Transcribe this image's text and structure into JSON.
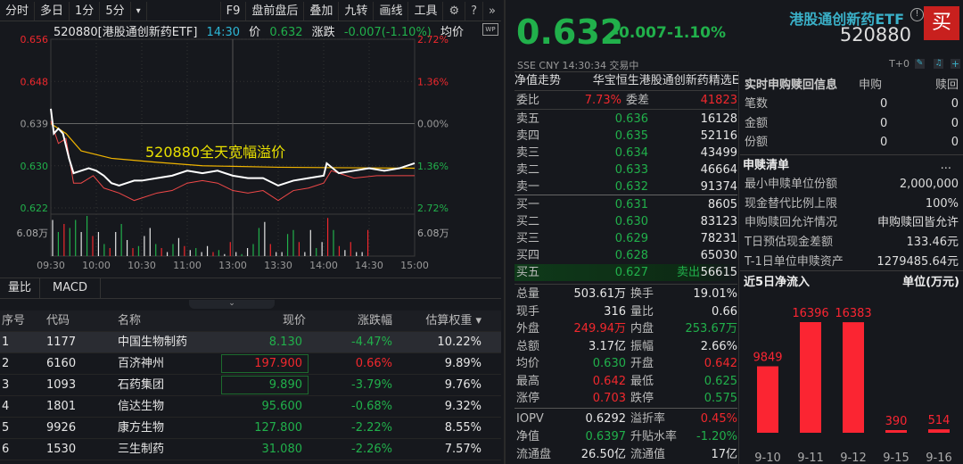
{
  "toolbar": {
    "left": [
      "分时",
      "多日",
      "1分",
      "5分"
    ],
    "more": "▾",
    "right": [
      "F9",
      "盘前盘后",
      "叠加",
      "九转",
      "画线",
      "工具"
    ],
    "icons": [
      "gear-icon",
      "help-icon",
      "chevrons-right-icon"
    ]
  },
  "chart": {
    "info": {
      "name": "520880[港股通创新药ETF]",
      "time": "14:30",
      "price_label": "价",
      "price": "0.632",
      "chg_label": "涨跌",
      "chg": "-0.007(-1.10%)",
      "avg_label": "均价"
    },
    "left_ticks": [
      {
        "v": "0.656",
        "c": "#f0282d"
      },
      {
        "v": "0.648",
        "c": "#f0282d"
      },
      {
        "v": "0.639",
        "c": "#9a9a9a"
      },
      {
        "v": "0.630",
        "c": "#21b04b"
      },
      {
        "v": "0.622",
        "c": "#21b04b"
      }
    ],
    "right_ticks": [
      {
        "v": "2.72%",
        "c": "#f0282d"
      },
      {
        "v": "1.36%",
        "c": "#f0282d"
      },
      {
        "v": "0.00%",
        "c": "#9a9a9a"
      },
      {
        "v": "1.36%",
        "c": "#21b04b"
      },
      {
        "v": "2.72%",
        "c": "#21b04b"
      }
    ],
    "vol_label": "6.08万",
    "x_ticks": [
      "09:30",
      "10:00",
      "10:30",
      "11:00",
      "13:00",
      "13:30",
      "14:00",
      "14:30",
      "15:00"
    ],
    "annotation": "520880全天宽幅溢价",
    "ylim": [
      0.622,
      0.656
    ],
    "price": [
      [
        0,
        0.642
      ],
      [
        2,
        0.637
      ],
      [
        5,
        0.638
      ],
      [
        8,
        0.637
      ],
      [
        12,
        0.632
      ],
      [
        15,
        0.629
      ],
      [
        20,
        0.6295
      ],
      [
        25,
        0.63
      ],
      [
        30,
        0.6295
      ],
      [
        35,
        0.6285
      ],
      [
        40,
        0.627
      ],
      [
        45,
        0.6265
      ],
      [
        50,
        0.627
      ],
      [
        55,
        0.6275
      ],
      [
        60,
        0.6275
      ],
      [
        70,
        0.628
      ],
      [
        80,
        0.6285
      ],
      [
        90,
        0.6295
      ],
      [
        100,
        0.629
      ],
      [
        110,
        0.6295
      ],
      [
        120,
        0.6285
      ],
      [
        130,
        0.628
      ],
      [
        140,
        0.628
      ],
      [
        150,
        0.6265
      ],
      [
        160,
        0.6275
      ],
      [
        170,
        0.628
      ],
      [
        180,
        0.6285
      ],
      [
        182,
        0.631
      ],
      [
        190,
        0.629
      ],
      [
        200,
        0.6295
      ],
      [
        210,
        0.63
      ],
      [
        220,
        0.6295
      ],
      [
        230,
        0.63
      ],
      [
        240,
        0.631
      ]
    ],
    "avg": [
      [
        0,
        0.639
      ],
      [
        10,
        0.637
      ],
      [
        20,
        0.6335
      ],
      [
        40,
        0.632
      ],
      [
        70,
        0.6312
      ],
      [
        100,
        0.6305
      ],
      [
        150,
        0.6302
      ],
      [
        240,
        0.63
      ]
    ],
    "iopv": [
      [
        0,
        0.6395
      ],
      [
        5,
        0.635
      ],
      [
        10,
        0.636
      ],
      [
        15,
        0.627
      ],
      [
        20,
        0.627
      ],
      [
        28,
        0.6285
      ],
      [
        35,
        0.626
      ],
      [
        45,
        0.625
      ],
      [
        55,
        0.6235
      ],
      [
        60,
        0.624
      ],
      [
        70,
        0.625
      ],
      [
        80,
        0.6255
      ],
      [
        90,
        0.627
      ],
      [
        100,
        0.6275
      ],
      [
        110,
        0.627
      ],
      [
        120,
        0.6255
      ],
      [
        130,
        0.625
      ],
      [
        140,
        0.6255
      ],
      [
        150,
        0.6235
      ],
      [
        160,
        0.6255
      ],
      [
        170,
        0.626
      ],
      [
        180,
        0.627
      ],
      [
        185,
        0.6295
      ],
      [
        200,
        0.628
      ],
      [
        215,
        0.6285
      ],
      [
        240,
        0.6285
      ]
    ],
    "volumes": [
      {
        "v": 0.9,
        "c": "w"
      },
      {
        "v": 0.6,
        "c": "g"
      },
      {
        "v": 0.8,
        "c": "r"
      },
      {
        "v": 0.7,
        "c": "g"
      },
      {
        "v": 0.9,
        "c": "g"
      },
      {
        "v": 0.6,
        "c": "w"
      },
      {
        "v": 1,
        "c": "g"
      },
      {
        "v": 0.5,
        "c": "r"
      },
      {
        "v": 0.6,
        "c": "w"
      },
      {
        "v": 0.3,
        "c": "g"
      },
      {
        "v": 0.2,
        "c": "r"
      },
      {
        "v": 0.6,
        "c": "w"
      },
      {
        "v": 0.8,
        "c": "g"
      },
      {
        "v": 0.4,
        "c": "w"
      },
      {
        "v": 0.2,
        "c": "r"
      },
      {
        "v": 0.25,
        "c": "g"
      },
      {
        "v": 0.5,
        "c": "w"
      },
      {
        "v": 0.7,
        "c": "w"
      },
      {
        "v": 0.3,
        "c": "g"
      },
      {
        "v": 0.2,
        "c": "r"
      },
      {
        "v": 0.1,
        "c": "w"
      },
      {
        "v": 0.3,
        "c": "g"
      },
      {
        "v": 0.45,
        "c": "w"
      },
      {
        "v": 0.25,
        "c": "r"
      },
      {
        "v": 0.15,
        "c": "w"
      },
      {
        "v": 0.2,
        "c": "g"
      },
      {
        "v": 0.1,
        "c": "w"
      },
      {
        "v": 0.25,
        "c": "w"
      },
      {
        "v": 0.1,
        "c": "r"
      },
      {
        "v": 0.15,
        "c": "g"
      },
      {
        "v": 0.05,
        "c": "w"
      },
      {
        "v": 0.35,
        "c": "r"
      },
      {
        "v": 0.1,
        "c": "w"
      },
      {
        "v": 0.05,
        "c": "g"
      },
      {
        "v": 0.2,
        "c": "w"
      },
      {
        "v": 0.3,
        "c": "g"
      },
      {
        "v": 0.7,
        "c": "g"
      },
      {
        "v": 0.85,
        "c": "w"
      },
      {
        "v": 0.3,
        "c": "r"
      },
      {
        "v": 0.1,
        "c": "w"
      },
      {
        "v": 0.1,
        "c": "w"
      },
      {
        "v": 0.55,
        "c": "g"
      },
      {
        "v": 0.65,
        "c": "g"
      },
      {
        "v": 0.35,
        "c": "r"
      },
      {
        "v": 0.1,
        "c": "w"
      },
      {
        "v": 0.65,
        "c": "w"
      },
      {
        "v": 0.2,
        "c": "g"
      },
      {
        "v": 0.35,
        "c": "w"
      },
      {
        "v": 0.95,
        "c": "r"
      },
      {
        "v": 0.65,
        "c": "g"
      },
      {
        "v": 0.25,
        "c": "r"
      },
      {
        "v": 0.15,
        "c": "w"
      },
      {
        "v": 0.35,
        "c": "r"
      },
      {
        "v": 0.1,
        "c": "w"
      },
      {
        "v": 0.1,
        "c": "w"
      },
      {
        "v": 0.65,
        "c": "r"
      }
    ]
  },
  "sub_tabs": [
    "量比",
    "MACD"
  ],
  "constituents": {
    "headers": [
      "序号",
      "代码",
      "名称",
      "现价",
      "涨跌幅",
      "估算权重 ▾"
    ],
    "rows": [
      {
        "no": "1",
        "code": "1177",
        "name": "中国生物制药",
        "price": "8.130",
        "chg": "-4.47%",
        "w": "10.22%",
        "dir": "down"
      },
      {
        "no": "2",
        "code": "6160",
        "name": "百济神州",
        "price": "197.900",
        "chg": "0.66%",
        "w": "9.89%",
        "dir": "up"
      },
      {
        "no": "3",
        "code": "1093",
        "name": "石药集团",
        "price": "9.890",
        "chg": "-3.79%",
        "w": "9.76%",
        "dir": "down"
      },
      {
        "no": "4",
        "code": "1801",
        "name": "信达生物",
        "price": "95.600",
        "chg": "-0.68%",
        "w": "9.32%",
        "dir": "down"
      },
      {
        "no": "5",
        "code": "9926",
        "name": "康方生物",
        "price": "127.800",
        "chg": "-2.22%",
        "w": "8.55%",
        "dir": "down"
      },
      {
        "no": "6",
        "code": "1530",
        "name": "三生制药",
        "price": "31.080",
        "chg": "-2.26%",
        "w": "7.57%",
        "dir": "down"
      }
    ]
  },
  "quote": {
    "price": "0.632",
    "chg": "-0.007",
    "pct": "-1.10%",
    "name": "港股通创新药ETF",
    "code": "520880",
    "buy": "买",
    "meta": "SSE  CNY  14:30:34  交易中",
    "t0": "T+0"
  },
  "orderbook": {
    "nav_label": "净值走势",
    "index_name": "华宝恒生港股通创新药精选E",
    "wb_label": "委比",
    "wb": "7.73%",
    "wc_label": "委差",
    "wc": "41823",
    "asks": [
      {
        "l": "卖五",
        "p": "0.636",
        "v": "16128"
      },
      {
        "l": "卖四",
        "p": "0.635",
        "v": "52116"
      },
      {
        "l": "卖三",
        "p": "0.634",
        "v": "43499"
      },
      {
        "l": "卖二",
        "p": "0.633",
        "v": "46664"
      },
      {
        "l": "卖一",
        "p": "0.632",
        "v": "91374"
      }
    ],
    "bids": [
      {
        "l": "买一",
        "p": "0.631",
        "v": "8605"
      },
      {
        "l": "买二",
        "p": "0.630",
        "v": "83123"
      },
      {
        "l": "买三",
        "p": "0.629",
        "v": "78231"
      },
      {
        "l": "买四",
        "p": "0.628",
        "v": "65030"
      },
      {
        "l": "买五",
        "p": "0.627",
        "v": "56615",
        "tag": "卖出"
      }
    ]
  },
  "stats": [
    [
      "总量",
      "503.61万",
      "w",
      "换手",
      "19.01%",
      "w"
    ],
    [
      "现手",
      "316",
      "w",
      "量比",
      "0.66",
      "w"
    ],
    [
      "外盘",
      "249.94万",
      "r",
      "内盘",
      "253.67万",
      "g"
    ],
    [
      "总额",
      "3.17亿",
      "w",
      "振幅",
      "2.66%",
      "w"
    ],
    [
      "均价",
      "0.630",
      "g",
      "开盘",
      "0.642",
      "r"
    ],
    [
      "最高",
      "0.642",
      "r",
      "最低",
      "0.625",
      "g"
    ],
    [
      "涨停",
      "0.703",
      "r",
      "跌停",
      "0.575",
      "g"
    ],
    [
      "IOPV",
      "0.6292",
      "w",
      "溢折率",
      "0.45%",
      "r"
    ],
    [
      "净值",
      "0.6397",
      "g",
      "升贴水率",
      "-1.20%",
      "g"
    ],
    [
      "流通盘",
      "26.50亿",
      "w",
      "流通值",
      "17亿",
      "w"
    ]
  ],
  "creation": {
    "title": "实时申购赎回信息",
    "col1": "申购",
    "col2": "赎回",
    "rows": [
      [
        "笔数",
        "0",
        "0"
      ],
      [
        "金额",
        "0",
        "0"
      ],
      [
        "份额",
        "0",
        "0"
      ]
    ],
    "list_title": "申赎清单",
    "more": "...",
    "list": [
      [
        "最小申赎单位份额",
        "2,000,000"
      ],
      [
        "现金替代比例上限",
        "100%"
      ],
      [
        "申购赎回允许情况",
        "申购赎回皆允许"
      ],
      [
        "T日预估现金差额",
        "133.46元"
      ],
      [
        "T-1日单位申赎资产",
        "1279485.64元"
      ]
    ]
  },
  "flow_chart": {
    "title": "近5日净流入",
    "unit": "单位(万元)",
    "chart_data": {
      "type": "bar",
      "categories": [
        "9-10",
        "9-11",
        "9-12",
        "9-15",
        "9-16"
      ],
      "values": [
        9849,
        16396,
        16383,
        390,
        514
      ],
      "color": "#fb2532"
    }
  }
}
